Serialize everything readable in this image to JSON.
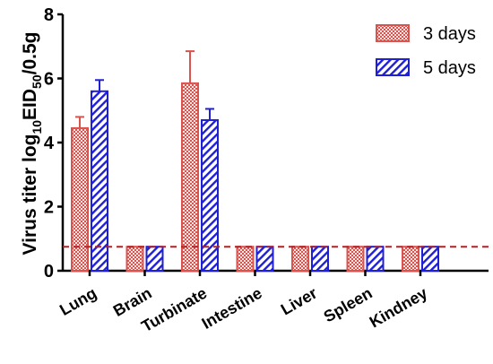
{
  "chart_data": {
    "type": "bar",
    "categories": [
      "Lung",
      "Brain",
      "Turbinate",
      "Intestine",
      "Liver",
      "Spleen",
      "Kindney"
    ],
    "series": [
      {
        "name": "3 days",
        "values": [
          4.45,
          0.75,
          5.85,
          0.75,
          0.75,
          0.75,
          0.75
        ],
        "errors": [
          0.35,
          0,
          1.0,
          0,
          0,
          0,
          0
        ],
        "color": "#d9534f",
        "fill": "crosshatch"
      },
      {
        "name": "5 days",
        "values": [
          5.6,
          0.75,
          4.7,
          0.75,
          0.75,
          0.75,
          0.75
        ],
        "errors": [
          0.35,
          0,
          0.35,
          0,
          0,
          0,
          0
        ],
        "color": "#1f1fd6",
        "fill": "diagonal-stripes"
      }
    ],
    "ylabel": {
      "prefix": "Virus titer log",
      "sub1": "10",
      "mid": "EID",
      "sub2": "50",
      "suffix": "/0.5g"
    },
    "ylim": [
      0,
      8
    ],
    "yticks": [
      "0",
      "2",
      "4",
      "6",
      "8"
    ],
    "detection_limit": 0.75,
    "legend_position": "top-right",
    "grid": false
  }
}
